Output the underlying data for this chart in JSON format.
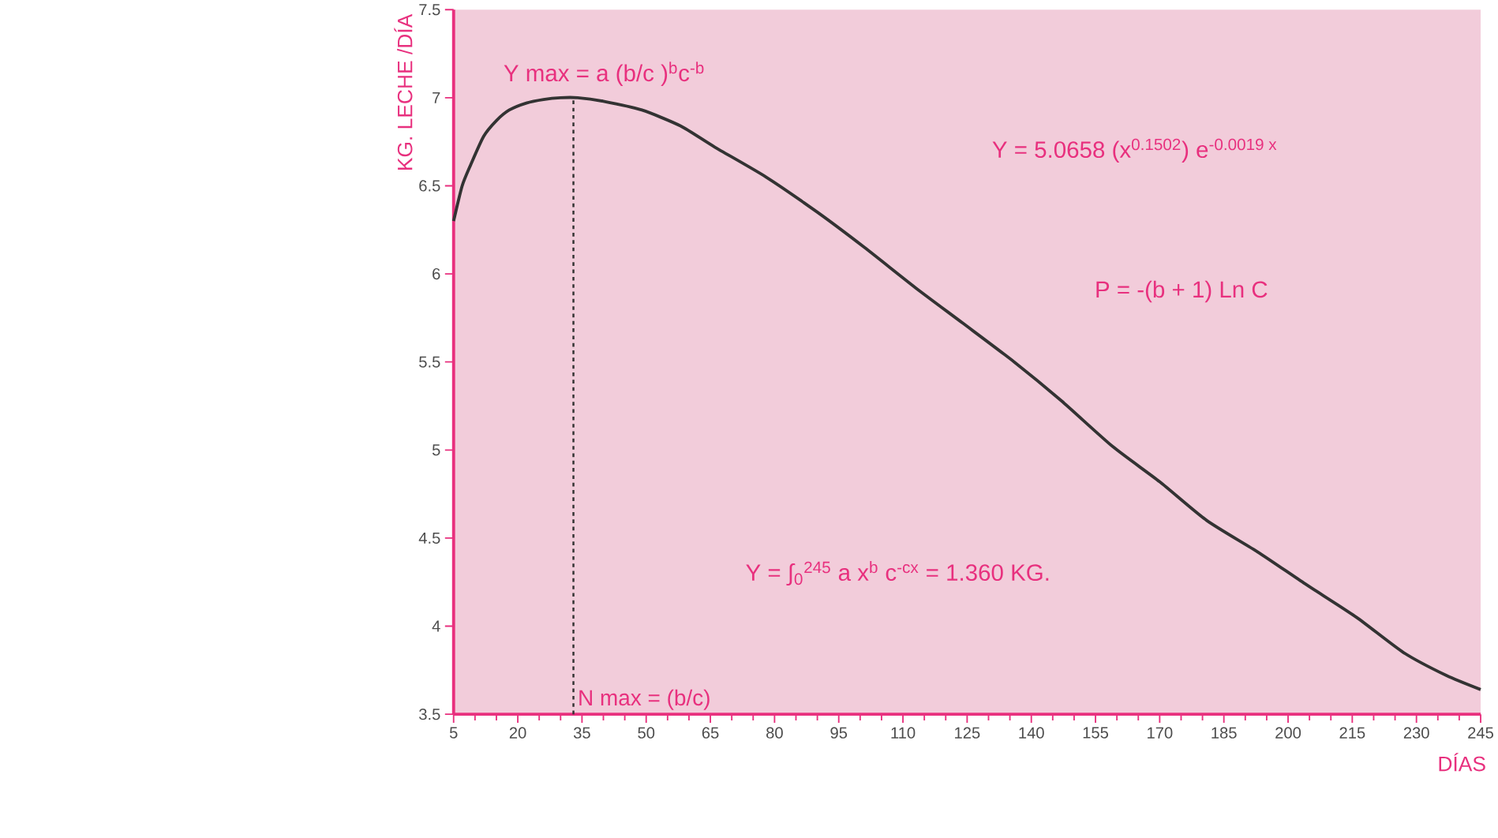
{
  "chart_data": {
    "type": "line",
    "xlabel": "DÍAS",
    "ylabel": "KG. LECHE /DÍA",
    "xlim": [
      5,
      245
    ],
    "xticks": [
      5,
      20,
      35,
      50,
      65,
      80,
      95,
      110,
      125,
      140,
      155,
      170,
      185,
      200,
      215,
      230,
      245
    ],
    "ylim": [
      3.5,
      7.5
    ],
    "yticks": [
      3.5,
      4,
      4.5,
      5,
      5.5,
      6,
      6.5,
      7,
      7.5
    ],
    "series": [
      {
        "color": "#333333",
        "x": [
          5,
          7,
          9,
          12,
          15,
          18,
          22,
          26,
          30,
          34,
          40,
          49,
          58,
          66,
          78,
          90,
          101,
          113,
          124,
          136,
          147,
          159,
          170,
          181,
          193,
          204,
          216,
          227,
          237,
          245
        ],
        "values": [
          6.3,
          6.5,
          6.62,
          6.78,
          6.87,
          6.93,
          6.97,
          6.99,
          7.0,
          7.0,
          6.98,
          6.93,
          6.84,
          6.72,
          6.55,
          6.35,
          6.15,
          5.92,
          5.72,
          5.5,
          5.28,
          5.02,
          4.82,
          4.6,
          4.42,
          4.24,
          4.05,
          3.85,
          3.72,
          3.64
        ]
      }
    ],
    "ref_lines": [
      {
        "axis": "x",
        "value": 33,
        "label": "N max = (b/c)",
        "color": "#333333",
        "line_style": "dashed"
      }
    ],
    "annotations": [
      {
        "text": "Y max = a (b/c )$^{b}$c$^{-b}$",
        "x": 33,
        "y": 7.0
      },
      "Y = 5.0658 (x$^{0.1502}$) e$^{-0.0019 x}$",
      "P = -(b + 1) Ln C",
      "Y = ∫$_{0}$$^{245}$ a x$^{b}$  c$^{-cx}$ = 1.360 KG."
    ]
  }
}
